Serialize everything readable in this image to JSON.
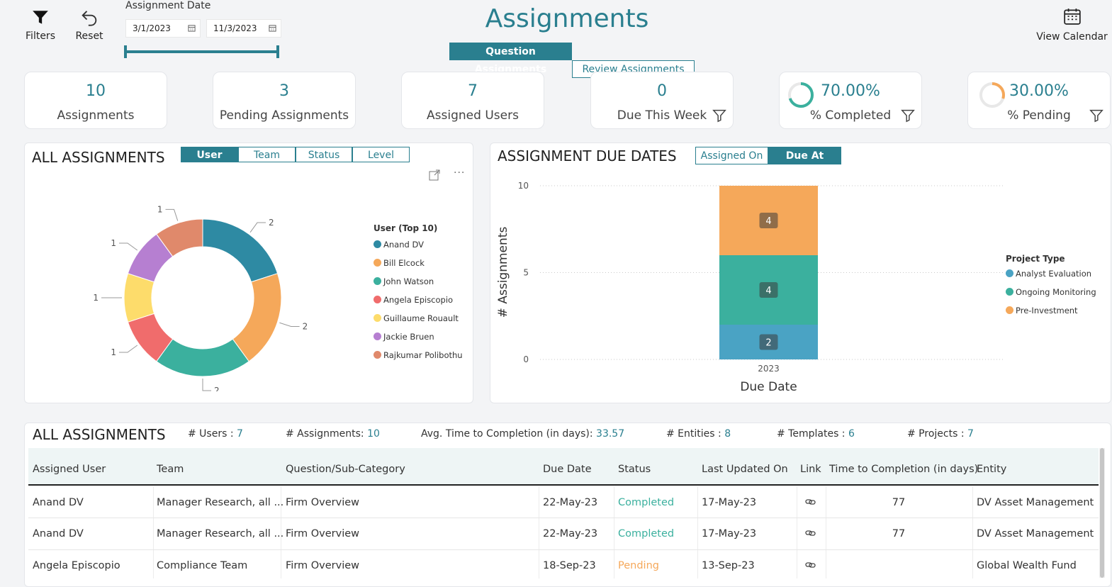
{
  "header": {
    "filters_label": "Filters",
    "reset_label": "Reset",
    "date_label": "Assignment Date",
    "date_from": "3/1/2023",
    "date_to": "11/3/2023",
    "title": "Assignments",
    "tabs": [
      "Question Assignments",
      "Review Assignments"
    ],
    "active_tab": 0,
    "view_calendar_label": "View Calendar",
    "accent_color": "#2a7f8f"
  },
  "kpis": [
    {
      "value": "10",
      "label": "Assignments"
    },
    {
      "value": "3",
      "label": "Pending Assignments"
    },
    {
      "value": "7",
      "label": "Assigned Users"
    },
    {
      "value": "0",
      "label": "Due This Week"
    },
    {
      "value": "70.00%",
      "label": "% Completed",
      "fraction": 0.7,
      "ring_color": "#3bb09e"
    },
    {
      "value": "30.00%",
      "label": "% Pending",
      "fraction": 0.3,
      "ring_color": "#f5a85a"
    }
  ],
  "donut_panel": {
    "title": "ALL ASSIGNMENTS",
    "tabs": [
      "User",
      "Team",
      "Status",
      "Level"
    ],
    "active_tab": 0,
    "legend_title": "User (Top 10)"
  },
  "due_panel": {
    "title": "ASSIGNMENT DUE DATES",
    "tabs": [
      "Assigned On",
      "Due At"
    ],
    "active_tab": 1,
    "legend_title": "Project Type"
  },
  "chart_data": [
    {
      "type": "pie",
      "title": "",
      "categories": [
        "Anand DV",
        "Bill Elcock",
        "John Watson",
        "Angela Episcopio",
        "Guillaume Rouault",
        "Jackie Bruen",
        "Rajkumar Polibothu"
      ],
      "values": [
        2,
        2,
        2,
        1,
        1,
        1,
        1
      ],
      "colors": [
        "#2e8aa3",
        "#f5a85a",
        "#3bb09e",
        "#f06c6c",
        "#fddc6b",
        "#b67fd1",
        "#e0896b"
      ],
      "legend": "right"
    },
    {
      "type": "bar",
      "stacked": true,
      "xlabel": "Due Date",
      "ylabel": "# Assignments",
      "categories": [
        "2023"
      ],
      "series": [
        {
          "name": "Analyst Evaluation",
          "values": [
            2
          ],
          "color": "#4aa3c4"
        },
        {
          "name": "Ongoing Monitoring",
          "values": [
            4
          ],
          "color": "#3bb09e"
        },
        {
          "name": "Pre-Investment",
          "values": [
            4
          ],
          "color": "#f5a85a"
        }
      ],
      "yticks": [
        0,
        5,
        10
      ],
      "ylim": [
        0,
        10
      ],
      "grid": true,
      "legend": "right"
    }
  ],
  "table_panel": {
    "title": "ALL ASSIGNMENTS",
    "stats": [
      {
        "label": "# Users : ",
        "value": "7"
      },
      {
        "label": "# Assignments: ",
        "value": "10"
      },
      {
        "label": "Avg. Time to Completion (in days): ",
        "value": "33.57"
      },
      {
        "label": "# Entities : ",
        "value": "8"
      },
      {
        "label": "# Templates : ",
        "value": "6"
      },
      {
        "label": "# Projects : ",
        "value": "7"
      }
    ],
    "columns": [
      "Assigned User",
      "Team",
      "Question/Sub-Category",
      "Due Date",
      "Status",
      "Last Updated On",
      "Link",
      "Time to Completion (in days)",
      "Entity"
    ],
    "rows": [
      {
        "user": "Anand DV",
        "team": "Manager Research, all ...",
        "question": "Firm Overview",
        "due": "22-May-23",
        "status": "Completed",
        "updated": "17-May-23",
        "ttc": "77",
        "entity": "DV Asset Management"
      },
      {
        "user": "Anand DV",
        "team": "Manager Research, all ...",
        "question": "Firm Overview",
        "due": "22-May-23",
        "status": "Completed",
        "updated": "17-May-23",
        "ttc": "77",
        "entity": "DV Asset Management"
      },
      {
        "user": "Angela Episcopio",
        "team": "Compliance Team",
        "question": "Firm Overview",
        "due": "18-Sep-23",
        "status": "Pending",
        "updated": "13-Sep-23",
        "ttc": "",
        "entity": "Global Wealth Fund"
      }
    ],
    "status_colors": {
      "Completed": "#3bb09e",
      "Pending": "#f5a85a"
    }
  }
}
